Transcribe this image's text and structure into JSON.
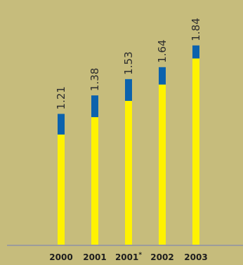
{
  "chart_data": {
    "type": "bar",
    "stacked": true,
    "categories": [
      "2000",
      "2001",
      "2001*",
      "2002",
      "2003"
    ],
    "totals": [
      "1.21",
      "1.38",
      "1.53",
      "1.64",
      "1.84"
    ],
    "series": [
      {
        "values": [
          1.02,
          1.18,
          1.33,
          1.48,
          1.72
        ]
      },
      {
        "values": [
          0.19,
          0.2,
          0.2,
          0.16,
          0.12
        ]
      }
    ],
    "ylim": [
      0,
      2.0
    ],
    "grid": false,
    "legend": "none"
  },
  "colors": {
    "background": "#c6bc7c",
    "bottom_segment": "#fff200",
    "top_segment": "#0b62ad",
    "axis": "#9c9c9c"
  }
}
